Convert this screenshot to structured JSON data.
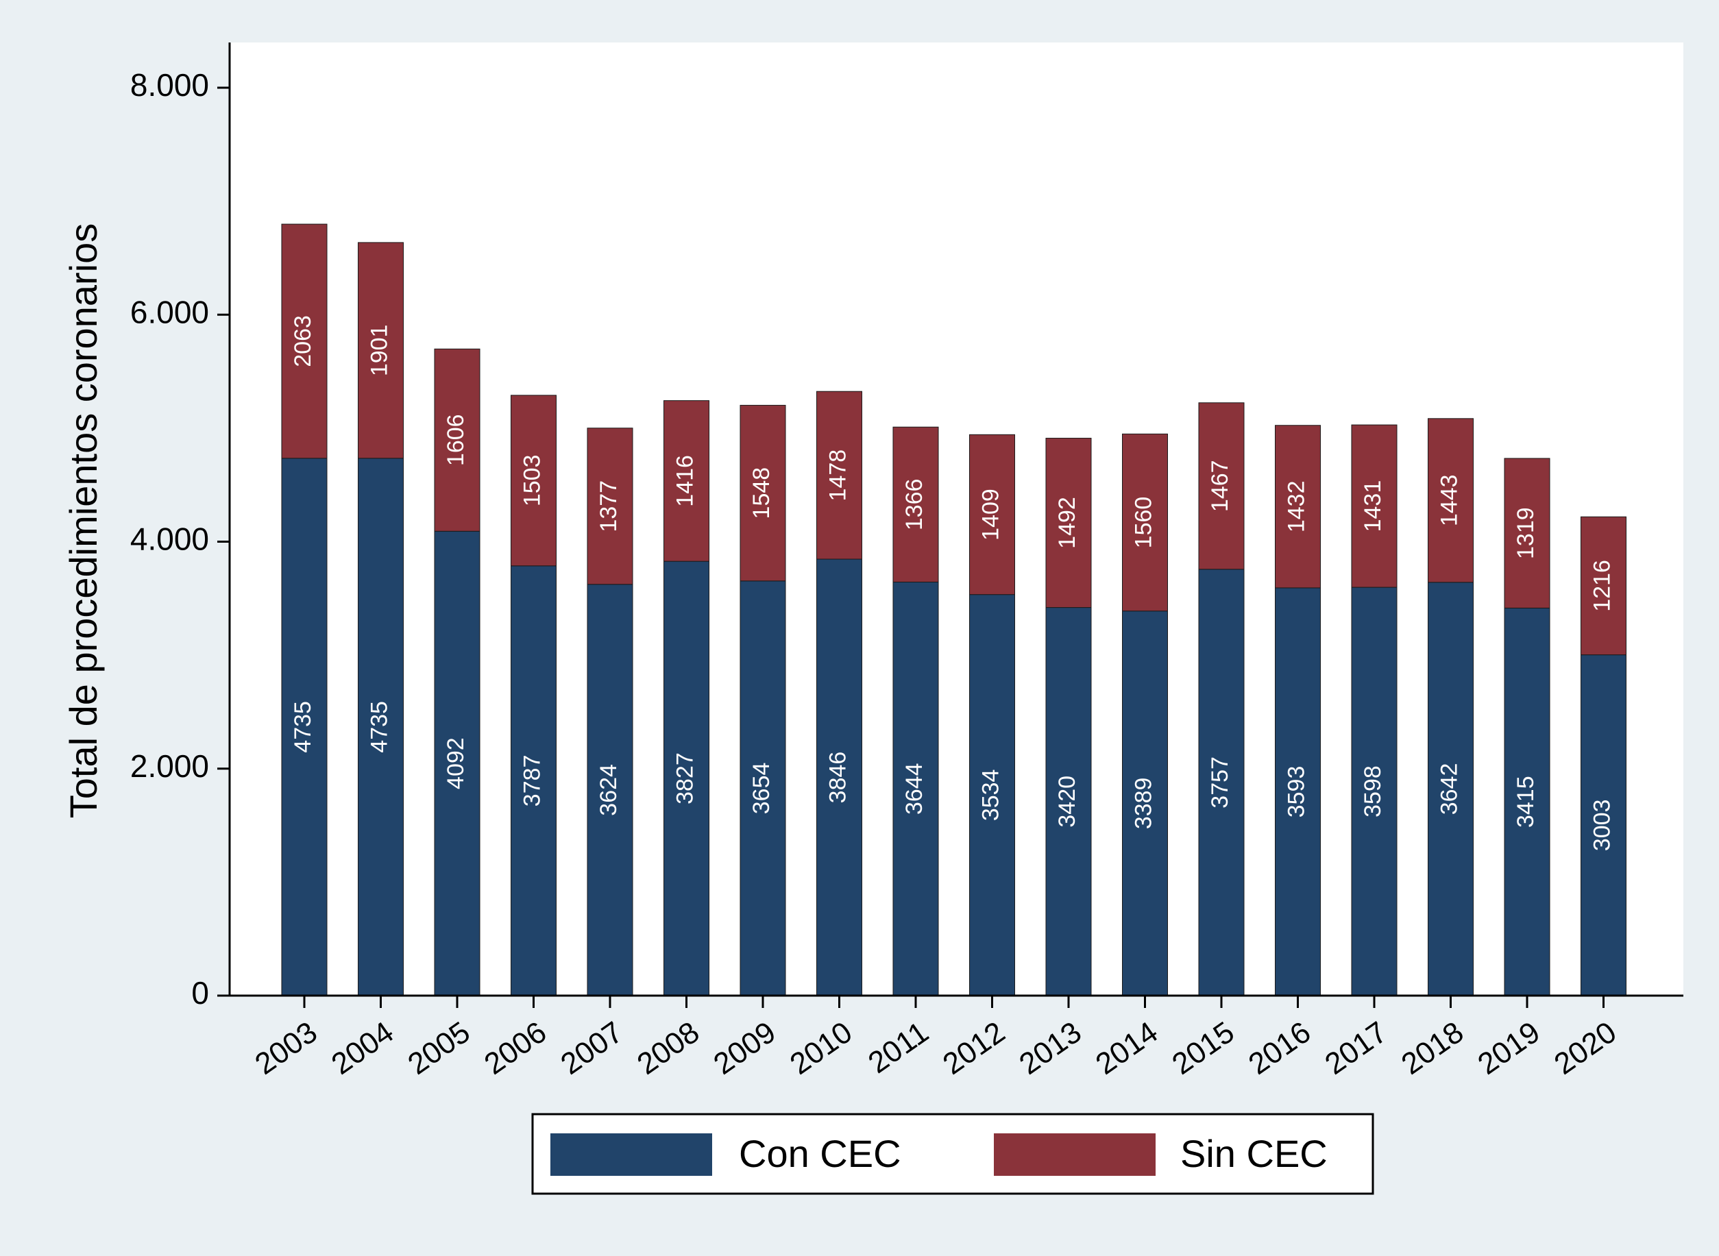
{
  "chart_data": {
    "type": "bar",
    "stacked": true,
    "title": "",
    "xlabel": "",
    "ylabel": "Total de procedimientos coronarios",
    "ylim": [
      0,
      8400
    ],
    "yticks": [
      0,
      2000,
      4000,
      6000,
      8000
    ],
    "ytick_labels": [
      "0",
      "2.000",
      "4.000",
      "6.000",
      "8.000"
    ],
    "categories": [
      "2003",
      "2004",
      "2005",
      "2006",
      "2007",
      "2008",
      "2009",
      "2010",
      "2011",
      "2012",
      "2013",
      "2014",
      "2015",
      "2016",
      "2017",
      "2018",
      "2019",
      "2020"
    ],
    "series": [
      {
        "name": "Con CEC",
        "color": "#21446a",
        "values": [
          4735,
          4735,
          4092,
          3787,
          3624,
          3827,
          3654,
          3846,
          3644,
          3534,
          3420,
          3389,
          3757,
          3593,
          3598,
          3642,
          3415,
          3003
        ]
      },
      {
        "name": "Sin CEC",
        "color": "#8a333a",
        "values": [
          2063,
          1901,
          1606,
          1503,
          1377,
          1416,
          1548,
          1478,
          1366,
          1409,
          1492,
          1560,
          1467,
          1432,
          1431,
          1443,
          1319,
          1216
        ]
      }
    ],
    "grid": false,
    "legend_position": "bottom",
    "data_labels": "inside, rotated vertical"
  }
}
